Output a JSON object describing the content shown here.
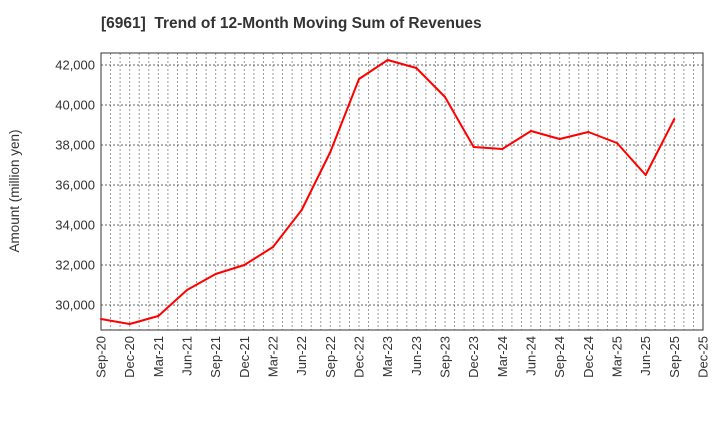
{
  "chart_data": {
    "type": "line",
    "title": "[6961]  Trend of 12-Month Moving Sum of Revenues",
    "xlabel": "",
    "ylabel": "Amount (million yen)",
    "ylim": [
      28750,
      42600
    ],
    "grid": true,
    "line_color": "#ff0000",
    "x_ticks": [
      "Sep-20",
      "Dec-20",
      "Mar-21",
      "Jun-21",
      "Sep-21",
      "Dec-21",
      "Mar-22",
      "Jun-22",
      "Sep-22",
      "Dec-22",
      "Mar-23",
      "Jun-23",
      "Sep-23",
      "Dec-23",
      "Mar-24",
      "Jun-24",
      "Sep-24",
      "Dec-24",
      "Mar-25",
      "Jun-25",
      "Sep-25",
      "Dec-25"
    ],
    "y_ticks": [
      30000,
      32000,
      34000,
      36000,
      38000,
      40000,
      42000
    ],
    "y_tick_labels": [
      "30,000",
      "32,000",
      "34,000",
      "36,000",
      "38,000",
      "40,000",
      "42,000"
    ],
    "series": [
      {
        "name": "12-Month Moving Sum of Revenues",
        "x": [
          "Sep-20",
          "Dec-20",
          "Mar-21",
          "Jun-21",
          "Sep-21",
          "Dec-21",
          "Mar-22",
          "Jun-22",
          "Sep-22",
          "Dec-22",
          "Mar-23",
          "Jun-23",
          "Sep-23",
          "Dec-23",
          "Mar-24",
          "Jun-24",
          "Sep-24",
          "Dec-24",
          "Mar-25",
          "Jun-25",
          "Sep-25"
        ],
        "values": [
          29300,
          29050,
          29450,
          30750,
          31550,
          32000,
          32900,
          34750,
          37650,
          41300,
          42250,
          41850,
          40400,
          37900,
          37800,
          38700,
          38300,
          38650,
          38100,
          36500,
          39300
        ]
      }
    ]
  }
}
